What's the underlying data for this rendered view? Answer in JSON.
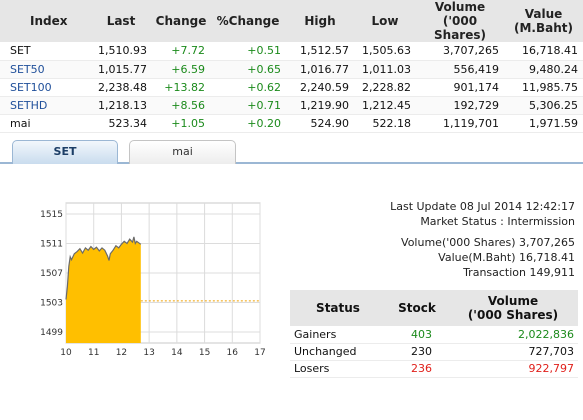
{
  "index_table": {
    "headers": {
      "index": "Index",
      "last": "Last",
      "change": "Change",
      "pct_change": "%Change",
      "high": "High",
      "low": "Low",
      "volume_line1": "Volume",
      "volume_line2": "('000 Shares)",
      "value_line1": "Value",
      "value_line2": "(M.Baht)"
    },
    "rows": [
      {
        "name": "SET",
        "last": "1,510.93",
        "change": "+7.72",
        "pct": "+0.51",
        "high": "1,512.57",
        "low": "1,505.63",
        "volume": "3,707,265",
        "value": "16,718.41"
      },
      {
        "name": "SET50",
        "last": "1,015.77",
        "change": "+6.59",
        "pct": "+0.65",
        "high": "1,016.77",
        "low": "1,011.03",
        "volume": "556,419",
        "value": "9,480.24"
      },
      {
        "name": "SET100",
        "last": "2,238.48",
        "change": "+13.82",
        "pct": "+0.62",
        "high": "2,240.59",
        "low": "2,228.82",
        "volume": "901,174",
        "value": "11,985.75"
      },
      {
        "name": "SETHD",
        "last": "1,218.13",
        "change": "+8.56",
        "pct": "+0.71",
        "high": "1,219.90",
        "low": "1,212.45",
        "volume": "192,729",
        "value": "5,306.25"
      },
      {
        "name": "mai",
        "last": "523.34",
        "change": "+1.05",
        "pct": "+0.20",
        "high": "524.90",
        "low": "522.18",
        "volume": "1,119,701",
        "value": "1,971.59"
      }
    ]
  },
  "tabs": [
    {
      "label": "SET",
      "active": true
    },
    {
      "label": "mai",
      "active": false
    }
  ],
  "chart_data": {
    "type": "area",
    "x_ticks": [
      "10",
      "11",
      "12",
      "13",
      "14",
      "15",
      "16",
      "17"
    ],
    "y_ticks": [
      "1515",
      "1511",
      "1507",
      "1503",
      "1499"
    ],
    "ylim": [
      1497.5,
      1516.5
    ],
    "xlim": [
      10,
      17
    ],
    "previous_close": 1503.21,
    "series_color": "#ffbf00",
    "series": [
      {
        "values": [
          [
            10.0,
            1503.4
          ],
          [
            10.05,
            1505.2
          ],
          [
            10.1,
            1507.9
          ],
          [
            10.15,
            1509.2
          ],
          [
            10.2,
            1508.8
          ],
          [
            10.3,
            1509.6
          ],
          [
            10.4,
            1509.9
          ],
          [
            10.5,
            1510.3
          ],
          [
            10.6,
            1509.7
          ],
          [
            10.7,
            1510.4
          ],
          [
            10.8,
            1510.1
          ],
          [
            10.9,
            1510.6
          ],
          [
            11.0,
            1510.2
          ],
          [
            11.1,
            1510.5
          ],
          [
            11.2,
            1510.0
          ],
          [
            11.3,
            1510.4
          ],
          [
            11.4,
            1510.1
          ],
          [
            11.5,
            1509.3
          ],
          [
            11.55,
            1508.7
          ],
          [
            11.6,
            1509.6
          ],
          [
            11.7,
            1510.1
          ],
          [
            11.8,
            1510.7
          ],
          [
            11.9,
            1510.4
          ],
          [
            12.0,
            1510.9
          ],
          [
            12.1,
            1511.3
          ],
          [
            12.2,
            1511.0
          ],
          [
            12.3,
            1511.6
          ],
          [
            12.4,
            1511.2
          ],
          [
            12.45,
            1511.9
          ],
          [
            12.5,
            1511.0
          ],
          [
            12.55,
            1511.3
          ],
          [
            12.7,
            1510.9
          ]
        ]
      }
    ]
  },
  "info": {
    "last_update": "Last Update 08 Jul 2014 12:42:17",
    "market_status": "Market Status : Intermission",
    "volume": "Volume('000 Shares) 3,707,265",
    "value": "Value(M.Baht) 16,718.41",
    "transaction": "Transaction 149,911"
  },
  "status_table": {
    "headers": {
      "status": "Status",
      "stock": "Stock",
      "volume_line1": "Volume",
      "volume_line2": "('000 Shares)"
    },
    "rows": [
      {
        "name": "Gainers",
        "stock": "403",
        "volume": "2,022,836",
        "tone": "pos"
      },
      {
        "name": "Unchanged",
        "stock": "230",
        "volume": "727,703",
        "tone": "neutral"
      },
      {
        "name": "Losers",
        "stock": "236",
        "volume": "922,797",
        "tone": "neg"
      }
    ]
  },
  "colors": {
    "header_bg": "#e6e6e6",
    "positive": "#1b8a1b",
    "negative": "#e0201b",
    "link": "#1f4f9a",
    "chart_fill": "#ffbf00"
  }
}
